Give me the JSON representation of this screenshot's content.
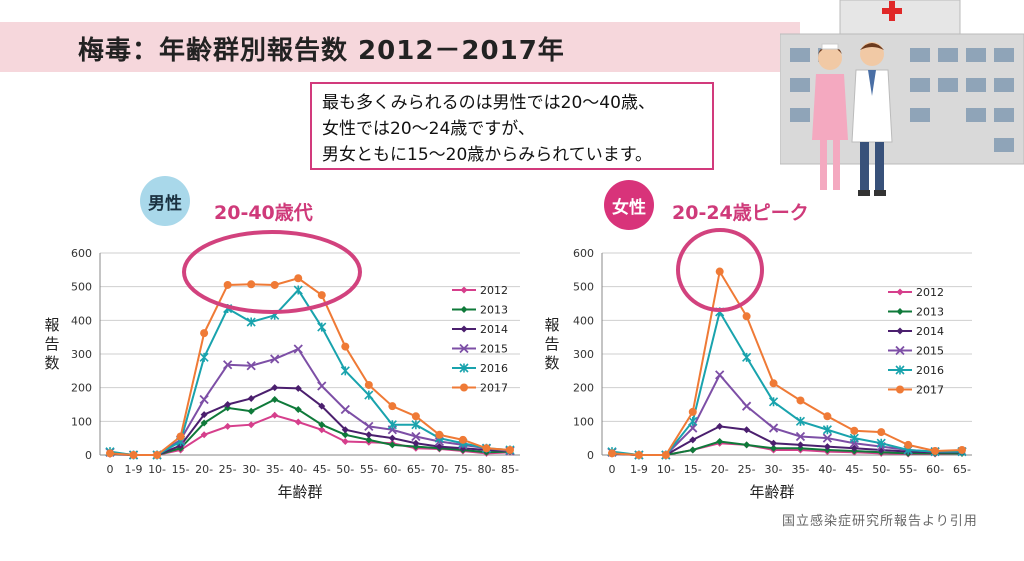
{
  "header": {
    "title": "梅毒：年齢群別報告数 2012－2017年"
  },
  "description": {
    "lines": [
      "最も多くみられるのは男性では20～40歳、",
      "女性では20～24歳ですが、",
      "男女ともに15～20歳からみられています。"
    ]
  },
  "male": {
    "badge": "男性",
    "peak_label": "20-40歳代"
  },
  "female": {
    "badge": "女性",
    "peak_label": "20-24歳ピーク"
  },
  "source_note": "国立感染症研究所報告より引用",
  "colors": {
    "2012": "#d63f8c",
    "2013": "#0f7a3a",
    "2014": "#4b1f6e",
    "2015": "#7d4fa6",
    "2016": "#19a3ad",
    "2017": "#ef7a36"
  },
  "chart_data": [
    {
      "type": "line",
      "id": "male",
      "xlabel": "年齢群",
      "ylabel": "報告数",
      "ylim": [
        0,
        600
      ],
      "yticks": [
        0,
        100,
        200,
        300,
        400,
        500,
        600
      ],
      "categories": [
        "0",
        "1-9",
        "10-",
        "15-",
        "20-",
        "25-",
        "30-",
        "35-",
        "40-",
        "45-",
        "50-",
        "55-",
        "60-",
        "65-",
        "70-",
        "75-",
        "80-",
        "85-"
      ],
      "series": [
        {
          "name": "2012",
          "marker": "diamond",
          "values": [
            2,
            0,
            0,
            15,
            60,
            85,
            90,
            118,
            98,
            75,
            40,
            38,
            35,
            20,
            18,
            12,
            5,
            8
          ]
        },
        {
          "name": "2013",
          "marker": "diamond",
          "values": [
            3,
            0,
            0,
            20,
            95,
            140,
            130,
            165,
            135,
            90,
            60,
            45,
            30,
            25,
            20,
            15,
            8,
            10
          ]
        },
        {
          "name": "2014",
          "marker": "diamond",
          "values": [
            5,
            0,
            0,
            28,
            120,
            150,
            168,
            200,
            198,
            145,
            75,
            60,
            50,
            35,
            25,
            20,
            15,
            12
          ]
        },
        {
          "name": "2015",
          "marker": "x",
          "values": [
            8,
            0,
            0,
            45,
            165,
            268,
            265,
            285,
            315,
            205,
            135,
            85,
            75,
            55,
            40,
            30,
            20,
            12
          ]
        },
        {
          "name": "2016",
          "marker": "asterisk",
          "values": [
            10,
            0,
            0,
            40,
            290,
            435,
            395,
            415,
            490,
            380,
            250,
            178,
            90,
            90,
            50,
            35,
            20,
            15
          ]
        },
        {
          "name": "2017",
          "marker": "circle",
          "values": [
            5,
            0,
            0,
            55,
            362,
            505,
            507,
            505,
            525,
            475,
            322,
            208,
            145,
            115,
            60,
            45,
            20,
            15
          ]
        }
      ],
      "legend": "right"
    },
    {
      "type": "line",
      "id": "female",
      "xlabel": "年齢群",
      "ylabel": "報告数",
      "ylim": [
        0,
        600
      ],
      "yticks": [
        0,
        100,
        200,
        300,
        400,
        500,
        600
      ],
      "categories": [
        "0",
        "1-9",
        "10-",
        "15-",
        "20-",
        "25-",
        "30-",
        "35-",
        "40-",
        "45-",
        "50-",
        "55-",
        "60-",
        "65-"
      ],
      "series": [
        {
          "name": "2012",
          "marker": "diamond",
          "values": [
            3,
            0,
            0,
            15,
            35,
            30,
            15,
            15,
            10,
            8,
            5,
            3,
            3,
            5
          ]
        },
        {
          "name": "2013",
          "marker": "diamond",
          "values": [
            4,
            0,
            0,
            15,
            40,
            30,
            20,
            20,
            15,
            12,
            8,
            5,
            5,
            5
          ]
        },
        {
          "name": "2014",
          "marker": "diamond",
          "values": [
            5,
            0,
            0,
            45,
            85,
            75,
            35,
            30,
            25,
            20,
            15,
            10,
            8,
            8
          ]
        },
        {
          "name": "2015",
          "marker": "x",
          "values": [
            8,
            0,
            0,
            80,
            238,
            145,
            80,
            55,
            50,
            35,
            25,
            15,
            10,
            10
          ]
        },
        {
          "name": "2016",
          "marker": "asterisk",
          "values": [
            10,
            0,
            0,
            100,
            425,
            290,
            158,
            100,
            75,
            50,
            35,
            15,
            10,
            10
          ]
        },
        {
          "name": "2017",
          "marker": "circle",
          "values": [
            5,
            0,
            0,
            128,
            545,
            412,
            213,
            162,
            115,
            72,
            68,
            30,
            12,
            15
          ]
        }
      ],
      "legend": "right"
    }
  ]
}
